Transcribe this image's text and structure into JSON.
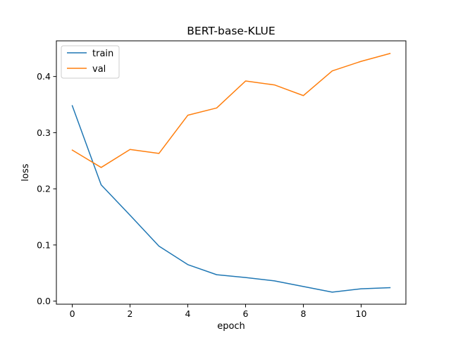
{
  "chart_data": {
    "type": "line",
    "title": "BERT-base-KLUE",
    "xlabel": "epoch",
    "ylabel": "loss",
    "xlim": [
      -0.55,
      11.55
    ],
    "ylim": [
      -0.0055,
      0.4635
    ],
    "xticks": [
      0,
      2,
      4,
      6,
      8,
      10
    ],
    "xtick_labels": [
      "0",
      "2",
      "4",
      "6",
      "8",
      "10"
    ],
    "yticks": [
      0.0,
      0.1,
      0.2,
      0.3,
      0.4
    ],
    "ytick_labels": [
      "0.0",
      "0.1",
      "0.2",
      "0.3",
      "0.4"
    ],
    "grid": false,
    "legend_position": "top-left",
    "x": [
      0,
      1,
      2,
      3,
      4,
      5,
      6,
      7,
      8,
      9,
      10,
      11
    ],
    "series": [
      {
        "name": "train",
        "color": "#1f77b4",
        "values": [
          0.348,
          0.207,
          0.153,
          0.098,
          0.065,
          0.047,
          0.042,
          0.036,
          0.026,
          0.016,
          0.022,
          0.024
        ]
      },
      {
        "name": "val",
        "color": "#ff7f0e",
        "values": [
          0.269,
          0.238,
          0.27,
          0.263,
          0.331,
          0.344,
          0.392,
          0.385,
          0.366,
          0.41,
          0.427,
          0.441
        ]
      }
    ]
  }
}
